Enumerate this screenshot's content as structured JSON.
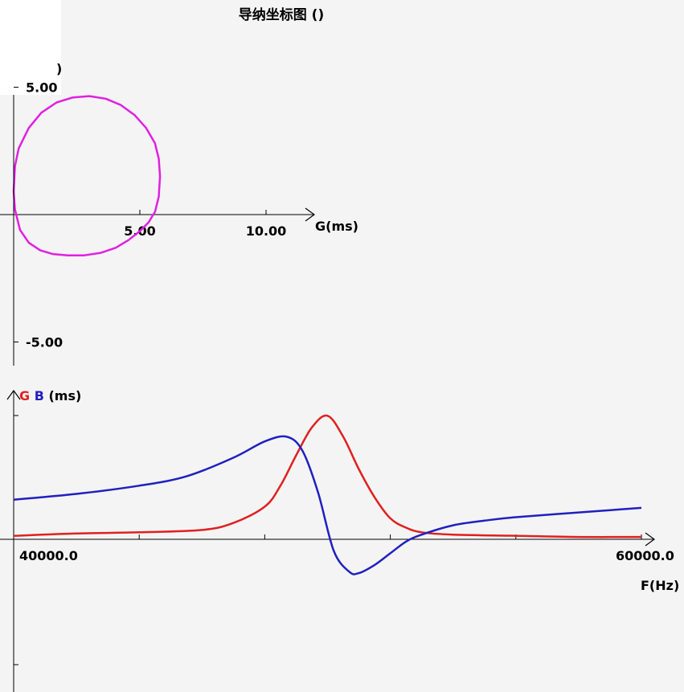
{
  "title": "导纳坐标图 ()",
  "top_left_fragment": ")",
  "chart_data": [
    {
      "type": "line",
      "name": "admittance-circle",
      "xlabel": "G(ms)",
      "ylabel": "",
      "xlim": [
        -0.5,
        12
      ],
      "ylim": [
        -5.0,
        5.0
      ],
      "x_ticks": [
        5.0,
        10.0
      ],
      "x_tick_labels": [
        "5.00",
        "10.00"
      ],
      "y_ticks": [
        -5.0,
        5.0
      ],
      "y_tick_labels": [
        "-5.00",
        "5.00"
      ],
      "series": [
        {
          "color": "#e020e0",
          "x": [
            5.6,
            5.75,
            5.8,
            5.75,
            5.6,
            5.25,
            4.8,
            4.25,
            3.65,
            3.0,
            2.35,
            1.7,
            1.1,
            0.6,
            0.2,
            0.05,
            0.0,
            0.05,
            0.25,
            0.6,
            1.05,
            1.55,
            2.15,
            2.8,
            3.45,
            4.05,
            4.55,
            5.0,
            5.35,
            5.5,
            5.6
          ],
          "y": [
            0.1,
            0.7,
            1.5,
            2.2,
            2.8,
            3.4,
            3.9,
            4.3,
            4.55,
            4.65,
            4.6,
            4.4,
            4.0,
            3.4,
            2.6,
            1.9,
            0.9,
            0.2,
            -0.6,
            -1.1,
            -1.4,
            -1.55,
            -1.6,
            -1.6,
            -1.5,
            -1.3,
            -1.0,
            -0.65,
            -0.3,
            -0.05,
            0.1
          ]
        }
      ]
    },
    {
      "type": "line",
      "name": "G-B-vs-frequency",
      "xlabel": "F(Hz)",
      "ylabel": "(ms)",
      "legend": [
        "G",
        "B"
      ],
      "xlim": [
        40000.0,
        60000.0
      ],
      "x_tick_labels": [
        "40000.0",
        "60000.0"
      ],
      "ylim": [
        -5.5,
        5.5
      ],
      "series": [
        {
          "name": "G",
          "color": "#e02020",
          "x": [
            40000,
            42000,
            44000,
            46000,
            47000,
            48000,
            48500,
            49000,
            49500,
            50000,
            50500,
            51000,
            51500,
            52000,
            52500,
            53000,
            54000,
            56000,
            58000,
            60000
          ],
          "y": [
            0.15,
            0.25,
            0.3,
            0.4,
            0.7,
            1.4,
            2.3,
            3.6,
            4.8,
            5.3,
            4.4,
            3.0,
            1.8,
            0.9,
            0.5,
            0.3,
            0.2,
            0.15,
            0.1,
            0.1
          ]
        },
        {
          "name": "B",
          "color": "#2020c0",
          "x": [
            40000,
            42000,
            44000,
            45500,
            47000,
            48000,
            48700,
            49200,
            49700,
            50200,
            50700,
            51000,
            51500,
            52000,
            52500,
            53000,
            54000,
            55000,
            56000,
            58000,
            60000
          ],
          "y": [
            1.7,
            1.95,
            2.3,
            2.7,
            3.5,
            4.2,
            4.4,
            3.8,
            2.0,
            -0.5,
            -1.4,
            -1.45,
            -1.1,
            -0.6,
            -0.1,
            0.2,
            0.6,
            0.8,
            0.95,
            1.15,
            1.35
          ]
        }
      ]
    }
  ]
}
